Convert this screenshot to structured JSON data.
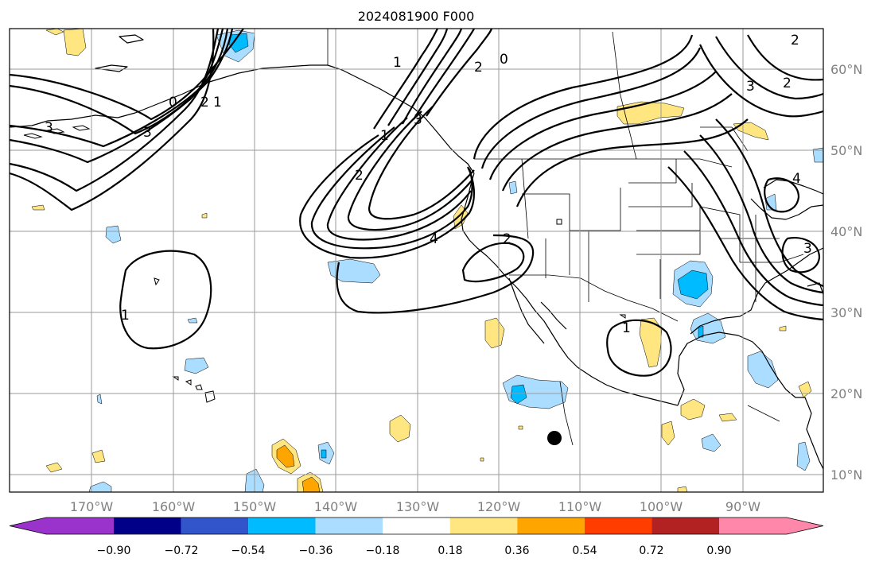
{
  "title": "2024081900 F000",
  "latitude_labels": [
    "60°N",
    "50°N",
    "40°N",
    "30°N",
    "20°N",
    "10°N"
  ],
  "longitude_labels": [
    "170°W",
    "160°W",
    "150°W",
    "140°W",
    "130°W",
    "120°W",
    "110°W",
    "100°W",
    "90°W"
  ],
  "colorbar": {
    "colors": [
      "#9933cc",
      "#000088",
      "#3355cc",
      "#00bbff",
      "#aaddff",
      "#ffffff",
      "#ffe680",
      "#ffa500",
      "#ff3d00",
      "#b22222",
      "#ff88aa"
    ],
    "tick_labels": [
      "−0.90",
      "−0.72",
      "−0.54",
      "−0.36",
      "−0.18",
      "0.18",
      "0.36",
      "0.54",
      "0.72",
      "0.90"
    ]
  },
  "contour_labels": [
    "3",
    "3",
    "2",
    "1",
    "0",
    "2",
    "1",
    "1",
    "2",
    "3",
    "4",
    "2",
    "3",
    "0",
    "2",
    "3",
    "4",
    "1",
    "1",
    "2"
  ],
  "marker": {
    "color": "#000000"
  }
}
